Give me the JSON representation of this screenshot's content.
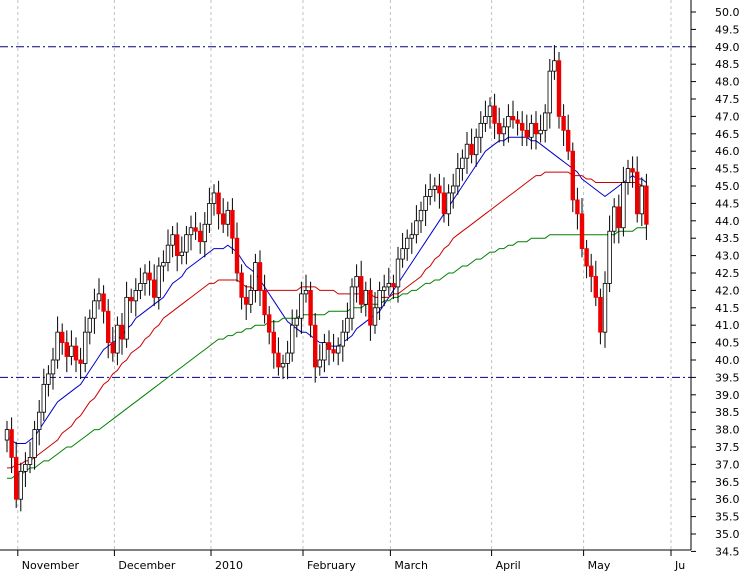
{
  "chart_data": {
    "type": "candlestick",
    "title": "",
    "xlabel": "",
    "ylabel": "",
    "ylim": [
      34.0,
      50.2
    ],
    "y_ticks": [
      34.5,
      35.0,
      35.5,
      36.0,
      36.5,
      37.0,
      37.5,
      38.0,
      38.5,
      39.0,
      39.5,
      40.0,
      40.5,
      41.0,
      41.5,
      42.0,
      42.5,
      43.0,
      43.5,
      44.0,
      44.5,
      45.0,
      45.5,
      46.0,
      46.5,
      47.0,
      47.5,
      48.0,
      48.5,
      49.0,
      49.5,
      50.0
    ],
    "y_tick_labels": [
      "34.5",
      "35.0",
      "35.5",
      "36.0",
      "36.5",
      "37.0",
      "37.5",
      "38.0",
      "38.5",
      "39.0",
      "39.5",
      "40.0",
      "40.5",
      "41.0",
      "41.5",
      "42.0",
      "42.5",
      "43.0",
      "43.5",
      "44.0",
      "44.5",
      "45.0",
      "45.5",
      "46.0",
      "46.5",
      "47.0",
      "47.5",
      "48.0",
      "48.5",
      "49.0",
      "49.5",
      "50.0"
    ],
    "x_labels": [
      {
        "label": "November",
        "index": 3
      },
      {
        "label": "December",
        "index": 24
      },
      {
        "label": "2010",
        "index": 45
      },
      {
        "label": "February",
        "index": 65
      },
      {
        "label": "March",
        "index": 84
      },
      {
        "label": "April",
        "index": 106
      },
      {
        "label": "May",
        "index": 126
      },
      {
        "label": "Ju",
        "index": 145
      }
    ],
    "grid": "vertical",
    "reference_lines": [
      {
        "value": 49.0,
        "color": "#000080"
      },
      {
        "value": 39.5,
        "color": "#000080"
      }
    ],
    "colors": {
      "up": "#ffffff",
      "down": "#ee0000",
      "outline": "#000000",
      "ma_short": "#0000cc",
      "ma_mid": "#cc0000",
      "ma_long": "#008000",
      "grid": "#c0c0c0"
    },
    "series": [
      {
        "role": "close",
        "values": [
          38.0,
          37.2,
          36.0,
          36.8,
          37.0,
          37.2,
          38.0,
          38.5,
          39.3,
          39.6,
          40.0,
          40.8,
          40.5,
          40.1,
          40.4,
          40.0,
          39.9,
          40.8,
          41.2,
          41.7,
          41.9,
          41.4,
          40.5,
          40.2,
          41.0,
          40.6,
          41.8,
          41.7,
          42.0,
          42.2,
          42.5,
          42.3,
          41.8,
          42.7,
          42.8,
          43.3,
          43.6,
          43.0,
          43.1,
          43.6,
          43.8,
          43.7,
          43.4,
          43.9,
          44.5,
          44.8,
          44.2,
          43.9,
          44.3,
          43.5,
          42.5,
          41.8,
          41.6,
          42.0,
          42.8,
          42.0,
          41.3,
          40.8,
          40.2,
          39.8,
          39.9,
          40.2,
          41.0,
          41.2,
          41.9,
          42.0,
          41.0,
          39.8,
          40.0,
          40.5,
          40.3,
          40.2,
          40.4,
          40.8,
          41.2,
          42.1,
          42.4,
          41.6,
          42.0,
          41.0,
          41.5,
          42.0,
          42.1,
          42.2,
          42.1,
          42.9,
          43.2,
          43.5,
          43.6,
          44.0,
          44.3,
          44.7,
          44.9,
          45.0,
          44.8,
          44.2,
          44.8,
          45.0,
          45.5,
          45.8,
          46.2,
          45.9,
          46.4,
          46.8,
          47.0,
          47.3,
          46.8,
          46.5,
          46.7,
          47.0,
          46.9,
          46.8,
          46.6,
          46.4,
          46.8,
          46.5,
          46.6,
          47.1,
          48.3,
          48.6,
          47.0,
          46.6,
          46.0,
          44.6,
          44.2,
          43.2,
          42.7,
          42.4,
          41.8,
          40.8,
          42.2,
          43.7,
          44.4,
          43.8,
          45.1,
          45.5,
          45.4,
          44.2,
          45.0,
          43.9
        ]
      },
      {
        "role": "ma_short",
        "values": [
          37.8,
          37.7,
          37.6,
          37.6,
          37.6,
          37.7,
          37.8,
          38.0,
          38.2,
          38.4,
          38.6,
          38.8,
          38.9,
          39.0,
          39.1,
          39.2,
          39.3,
          39.5,
          39.7,
          39.9,
          40.1,
          40.3,
          40.4,
          40.5,
          40.6,
          40.7,
          40.9,
          41.0,
          41.2,
          41.3,
          41.4,
          41.5,
          41.6,
          41.7,
          41.8,
          42.0,
          42.2,
          42.3,
          42.4,
          42.6,
          42.7,
          42.8,
          42.9,
          43.0,
          43.1,
          43.2,
          43.2,
          43.2,
          43.3,
          43.2,
          43.1,
          42.9,
          42.7,
          42.6,
          42.5,
          42.3,
          42.1,
          41.9,
          41.7,
          41.5,
          41.3,
          41.1,
          41.0,
          40.9,
          40.8,
          40.8,
          40.7,
          40.6,
          40.5,
          40.5,
          40.4,
          40.4,
          40.4,
          40.5,
          40.6,
          40.7,
          40.9,
          41.0,
          41.1,
          41.2,
          41.3,
          41.4,
          41.6,
          41.8,
          42.0,
          42.2,
          42.4,
          42.6,
          42.8,
          43.0,
          43.2,
          43.4,
          43.6,
          43.8,
          44.0,
          44.2,
          44.4,
          44.6,
          44.8,
          45.0,
          45.2,
          45.4,
          45.6,
          45.8,
          46.0,
          46.1,
          46.2,
          46.3,
          46.3,
          46.4,
          46.4,
          46.4,
          46.4,
          46.4,
          46.3,
          46.3,
          46.2,
          46.1,
          46.0,
          45.9,
          45.8,
          45.7,
          45.6,
          45.5,
          45.4,
          45.2,
          45.1,
          45.0,
          44.9,
          44.8,
          44.7,
          44.8,
          44.9,
          45.0,
          45.1,
          45.2,
          45.3,
          45.2,
          45.2,
          45.1
        ]
      },
      {
        "role": "ma_mid",
        "values": [
          36.9,
          36.9,
          37.0,
          37.0,
          37.1,
          37.1,
          37.2,
          37.3,
          37.4,
          37.5,
          37.6,
          37.7,
          37.9,
          38.0,
          38.1,
          38.3,
          38.4,
          38.6,
          38.8,
          38.9,
          39.1,
          39.3,
          39.4,
          39.6,
          39.7,
          39.9,
          40.0,
          40.2,
          40.3,
          40.4,
          40.6,
          40.7,
          40.9,
          41.0,
          41.2,
          41.3,
          41.4,
          41.5,
          41.6,
          41.7,
          41.8,
          41.9,
          42.0,
          42.1,
          42.2,
          42.2,
          42.3,
          42.3,
          42.3,
          42.3,
          42.3,
          42.2,
          42.1,
          42.1,
          42.0,
          42.0,
          42.0,
          42.0,
          42.0,
          42.0,
          42.0,
          42.0,
          42.0,
          42.0,
          42.1,
          42.1,
          42.1,
          42.1,
          42.0,
          42.0,
          42.0,
          42.0,
          41.9,
          41.9,
          41.9,
          41.9,
          41.9,
          41.9,
          41.9,
          41.9,
          41.8,
          41.8,
          41.8,
          41.8,
          41.9,
          41.9,
          42.0,
          42.1,
          42.2,
          42.3,
          42.4,
          42.6,
          42.7,
          42.9,
          43.0,
          43.2,
          43.3,
          43.5,
          43.6,
          43.7,
          43.8,
          43.9,
          44.0,
          44.1,
          44.2,
          44.3,
          44.4,
          44.5,
          44.6,
          44.7,
          44.8,
          44.9,
          45.0,
          45.1,
          45.2,
          45.3,
          45.3,
          45.4,
          45.4,
          45.4,
          45.4,
          45.4,
          45.4,
          45.3,
          45.3,
          45.3,
          45.2,
          45.2,
          45.1,
          45.1,
          45.1,
          45.1,
          45.1,
          45.1,
          45.1,
          45.1,
          45.1,
          45.1,
          45.0,
          45.0
        ]
      },
      {
        "role": "ma_long",
        "values": [
          36.6,
          36.6,
          36.7,
          36.7,
          36.8,
          36.9,
          36.9,
          37.0,
          37.1,
          37.1,
          37.2,
          37.3,
          37.4,
          37.5,
          37.5,
          37.6,
          37.7,
          37.8,
          37.9,
          38.0,
          38.0,
          38.1,
          38.2,
          38.3,
          38.4,
          38.5,
          38.6,
          38.7,
          38.8,
          38.9,
          39.0,
          39.1,
          39.2,
          39.3,
          39.4,
          39.5,
          39.6,
          39.7,
          39.8,
          39.9,
          40.0,
          40.1,
          40.2,
          40.3,
          40.4,
          40.5,
          40.6,
          40.6,
          40.7,
          40.7,
          40.8,
          40.8,
          40.9,
          40.9,
          41.0,
          41.0,
          41.0,
          41.1,
          41.1,
          41.1,
          41.2,
          41.2,
          41.2,
          41.2,
          41.3,
          41.3,
          41.3,
          41.3,
          41.3,
          41.3,
          41.4,
          41.4,
          41.4,
          41.4,
          41.4,
          41.5,
          41.5,
          41.5,
          41.6,
          41.6,
          41.6,
          41.6,
          41.7,
          41.7,
          41.8,
          41.8,
          41.9,
          41.9,
          42.0,
          42.0,
          42.1,
          42.2,
          42.2,
          42.3,
          42.3,
          42.4,
          42.5,
          42.5,
          42.6,
          42.7,
          42.7,
          42.8,
          42.9,
          42.9,
          43.0,
          43.1,
          43.1,
          43.2,
          43.2,
          43.3,
          43.3,
          43.4,
          43.4,
          43.4,
          43.5,
          43.5,
          43.5,
          43.5,
          43.6,
          43.6,
          43.6,
          43.6,
          43.6,
          43.6,
          43.6,
          43.6,
          43.6,
          43.6,
          43.6,
          43.6,
          43.6,
          43.6,
          43.6,
          43.7,
          43.7,
          43.7,
          43.7,
          43.8,
          43.8,
          43.8
        ]
      }
    ]
  }
}
